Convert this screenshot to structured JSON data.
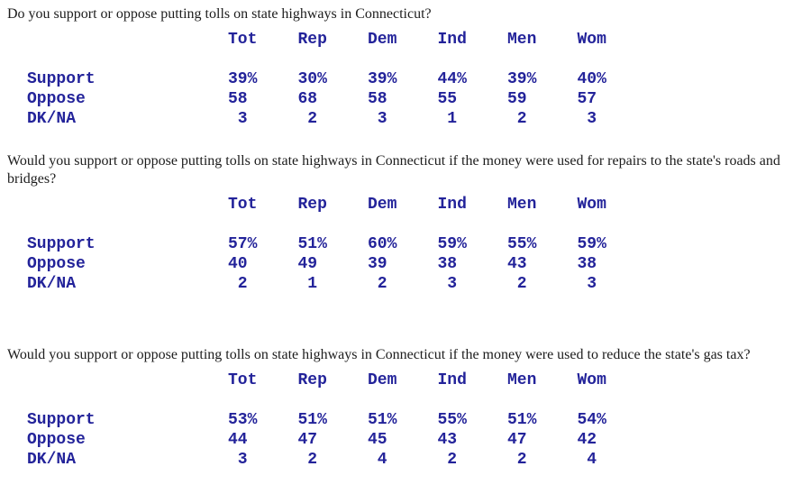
{
  "page": {
    "background_color": "#ffffff",
    "question_text_color": "#1c1c1c",
    "table_text_color": "#23239a"
  },
  "columns": [
    "Tot",
    "Rep",
    "Dem",
    "Ind",
    "Men",
    "Wom"
  ],
  "tables": [
    {
      "question": "Do you support or oppose putting tolls on state highways in Connecticut?",
      "rows": [
        {
          "label": "Support",
          "suffix": "%",
          "values": [
            "39",
            "30",
            "39",
            "44",
            "39",
            "40"
          ]
        },
        {
          "label": "Oppose",
          "suffix": "",
          "values": [
            "58",
            "68",
            "58",
            "55",
            "59",
            "57"
          ]
        },
        {
          "label": "DK/NA",
          "suffix": "",
          "values": [
            "3",
            "2",
            "3",
            "1",
            "2",
            "3"
          ]
        }
      ]
    },
    {
      "question": "Would you support or oppose putting tolls on state highways in Connecticut if the money were used for repairs to the state's roads and bridges?",
      "rows": [
        {
          "label": "Support",
          "suffix": "%",
          "values": [
            "57",
            "51",
            "60",
            "59",
            "55",
            "59"
          ]
        },
        {
          "label": "Oppose",
          "suffix": "",
          "values": [
            "40",
            "49",
            "39",
            "38",
            "43",
            "38"
          ]
        },
        {
          "label": "DK/NA",
          "suffix": "",
          "values": [
            "2",
            "1",
            "2",
            "3",
            "2",
            "3"
          ]
        }
      ]
    },
    {
      "question": "Would you support or oppose putting tolls on state highways in Connecticut if the money were used to reduce the state's gas tax?",
      "rows": [
        {
          "label": "Support",
          "suffix": "%",
          "values": [
            "53",
            "51",
            "51",
            "55",
            "51",
            "54"
          ]
        },
        {
          "label": "Oppose",
          "suffix": "",
          "values": [
            "44",
            "47",
            "45",
            "43",
            "47",
            "42"
          ]
        },
        {
          "label": "DK/NA",
          "suffix": "",
          "values": [
            "3",
            "2",
            "4",
            "2",
            "2",
            "4"
          ]
        }
      ]
    }
  ]
}
